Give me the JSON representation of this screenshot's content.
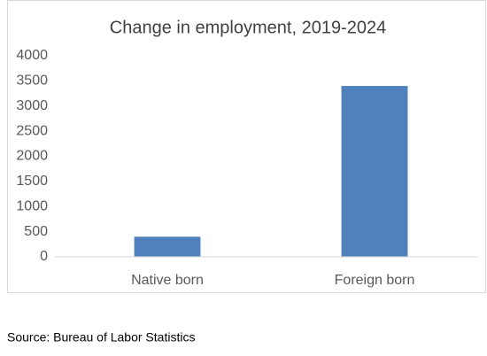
{
  "chart_data": {
    "type": "bar",
    "title": "Change in employment, 2019-2024",
    "categories": [
      "Native born",
      "Foreign born"
    ],
    "values": [
      400,
      3400
    ],
    "color": "#4f81bd",
    "ylim": [
      0,
      4000
    ],
    "yticks": [
      0,
      500,
      1000,
      1500,
      2000,
      2500,
      3000,
      3500,
      4000
    ],
    "grid": false
  },
  "source": "Source: Bureau of Labor Statistics"
}
